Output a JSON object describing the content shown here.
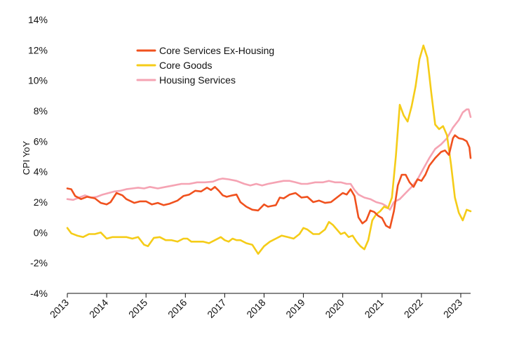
{
  "chart_data": {
    "type": "line",
    "title": "",
    "xlabel": "",
    "ylabel": "CPI YoY",
    "xlim": [
      2013.0,
      2023.25
    ],
    "ylim": [
      -4,
      14
    ],
    "ytick_values": [
      -4,
      -2,
      0,
      2,
      4,
      6,
      8,
      10,
      12,
      14
    ],
    "ytick_labels": [
      "-4%",
      "-2%",
      "0%",
      "2%",
      "4%",
      "6%",
      "8%",
      "10%",
      "12%",
      "14%"
    ],
    "xtick_values": [
      2013,
      2014,
      2015,
      2016,
      2017,
      2018,
      2019,
      2020,
      2021,
      2022,
      2023
    ],
    "xtick_labels": [
      "2013",
      "2014",
      "2015",
      "2016",
      "2017",
      "2018",
      "2019",
      "2020",
      "2021",
      "2022",
      "2023"
    ],
    "grid": false,
    "legend_position": "top-left",
    "series": [
      {
        "name": "Core Services Ex-Housing",
        "color": "#f0511e",
        "points": [
          [
            2013.0,
            2.9
          ],
          [
            2013.1,
            2.85
          ],
          [
            2013.2,
            2.4
          ],
          [
            2013.35,
            2.2
          ],
          [
            2013.5,
            2.35
          ],
          [
            2013.7,
            2.25
          ],
          [
            2013.85,
            1.95
          ],
          [
            2014.0,
            1.85
          ],
          [
            2014.1,
            2.0
          ],
          [
            2014.25,
            2.6
          ],
          [
            2014.4,
            2.45
          ],
          [
            2014.5,
            2.2
          ],
          [
            2014.7,
            1.95
          ],
          [
            2014.85,
            2.05
          ],
          [
            2015.0,
            2.05
          ],
          [
            2015.15,
            1.85
          ],
          [
            2015.3,
            1.95
          ],
          [
            2015.45,
            1.8
          ],
          [
            2015.6,
            1.9
          ],
          [
            2015.8,
            2.1
          ],
          [
            2015.95,
            2.4
          ],
          [
            2016.1,
            2.5
          ],
          [
            2016.25,
            2.75
          ],
          [
            2016.4,
            2.7
          ],
          [
            2016.55,
            2.95
          ],
          [
            2016.65,
            2.8
          ],
          [
            2016.75,
            3.0
          ],
          [
            2016.85,
            2.75
          ],
          [
            2016.95,
            2.45
          ],
          [
            2017.05,
            2.35
          ],
          [
            2017.2,
            2.45
          ],
          [
            2017.3,
            2.5
          ],
          [
            2017.4,
            2.0
          ],
          [
            2017.55,
            1.7
          ],
          [
            2017.7,
            1.5
          ],
          [
            2017.85,
            1.45
          ],
          [
            2018.0,
            1.85
          ],
          [
            2018.1,
            1.7
          ],
          [
            2018.2,
            1.75
          ],
          [
            2018.3,
            1.8
          ],
          [
            2018.4,
            2.3
          ],
          [
            2018.5,
            2.25
          ],
          [
            2018.65,
            2.5
          ],
          [
            2018.8,
            2.6
          ],
          [
            2018.95,
            2.3
          ],
          [
            2019.1,
            2.35
          ],
          [
            2019.25,
            2.0
          ],
          [
            2019.4,
            2.1
          ],
          [
            2019.55,
            1.95
          ],
          [
            2019.7,
            2.0
          ],
          [
            2019.85,
            2.3
          ],
          [
            2020.0,
            2.6
          ],
          [
            2020.1,
            2.5
          ],
          [
            2020.2,
            2.85
          ],
          [
            2020.3,
            2.4
          ],
          [
            2020.4,
            1.0
          ],
          [
            2020.5,
            0.6
          ],
          [
            2020.6,
            0.8
          ],
          [
            2020.7,
            1.45
          ],
          [
            2020.8,
            1.35
          ],
          [
            2020.9,
            1.1
          ],
          [
            2021.0,
            0.95
          ],
          [
            2021.1,
            0.45
          ],
          [
            2021.2,
            0.3
          ],
          [
            2021.3,
            1.4
          ],
          [
            2021.4,
            3.1
          ],
          [
            2021.5,
            3.8
          ],
          [
            2021.6,
            3.8
          ],
          [
            2021.7,
            3.3
          ],
          [
            2021.8,
            3.0
          ],
          [
            2021.9,
            3.5
          ],
          [
            2022.0,
            3.4
          ],
          [
            2022.1,
            3.8
          ],
          [
            2022.2,
            4.4
          ],
          [
            2022.35,
            4.9
          ],
          [
            2022.5,
            5.3
          ],
          [
            2022.6,
            5.4
          ],
          [
            2022.7,
            5.1
          ],
          [
            2022.8,
            6.2
          ],
          [
            2022.85,
            6.4
          ],
          [
            2022.95,
            6.2
          ],
          [
            2023.05,
            6.15
          ],
          [
            2023.15,
            6.0
          ],
          [
            2023.22,
            5.6
          ],
          [
            2023.25,
            4.9
          ]
        ]
      },
      {
        "name": "Core Goods",
        "color": "#f5cc18",
        "points": [
          [
            2013.0,
            0.3
          ],
          [
            2013.1,
            -0.05
          ],
          [
            2013.25,
            -0.2
          ],
          [
            2013.4,
            -0.3
          ],
          [
            2013.55,
            -0.1
          ],
          [
            2013.7,
            -0.1
          ],
          [
            2013.85,
            0.0
          ],
          [
            2014.0,
            -0.4
          ],
          [
            2014.15,
            -0.3
          ],
          [
            2014.35,
            -0.3
          ],
          [
            2014.5,
            -0.3
          ],
          [
            2014.65,
            -0.4
          ],
          [
            2014.8,
            -0.3
          ],
          [
            2014.95,
            -0.8
          ],
          [
            2015.05,
            -0.9
          ],
          [
            2015.2,
            -0.35
          ],
          [
            2015.35,
            -0.3
          ],
          [
            2015.5,
            -0.5
          ],
          [
            2015.65,
            -0.5
          ],
          [
            2015.8,
            -0.6
          ],
          [
            2015.95,
            -0.4
          ],
          [
            2016.05,
            -0.4
          ],
          [
            2016.15,
            -0.6
          ],
          [
            2016.3,
            -0.6
          ],
          [
            2016.45,
            -0.6
          ],
          [
            2016.6,
            -0.7
          ],
          [
            2016.75,
            -0.5
          ],
          [
            2016.9,
            -0.3
          ],
          [
            2017.0,
            -0.5
          ],
          [
            2017.1,
            -0.6
          ],
          [
            2017.2,
            -0.4
          ],
          [
            2017.3,
            -0.5
          ],
          [
            2017.4,
            -0.5
          ],
          [
            2017.55,
            -0.7
          ],
          [
            2017.7,
            -0.8
          ],
          [
            2017.85,
            -1.4
          ],
          [
            2018.0,
            -0.9
          ],
          [
            2018.15,
            -0.6
          ],
          [
            2018.3,
            -0.4
          ],
          [
            2018.45,
            -0.2
          ],
          [
            2018.6,
            -0.3
          ],
          [
            2018.75,
            -0.4
          ],
          [
            2018.9,
            -0.1
          ],
          [
            2019.0,
            0.3
          ],
          [
            2019.1,
            0.2
          ],
          [
            2019.25,
            -0.1
          ],
          [
            2019.4,
            -0.1
          ],
          [
            2019.55,
            0.2
          ],
          [
            2019.65,
            0.7
          ],
          [
            2019.75,
            0.5
          ],
          [
            2019.85,
            0.2
          ],
          [
            2019.95,
            -0.1
          ],
          [
            2020.05,
            0.0
          ],
          [
            2020.15,
            -0.3
          ],
          [
            2020.25,
            -0.2
          ],
          [
            2020.35,
            -0.6
          ],
          [
            2020.45,
            -0.9
          ],
          [
            2020.55,
            -1.1
          ],
          [
            2020.65,
            -0.5
          ],
          [
            2020.75,
            0.8
          ],
          [
            2020.85,
            1.2
          ],
          [
            2020.95,
            1.4
          ],
          [
            2021.05,
            1.7
          ],
          [
            2021.15,
            1.6
          ],
          [
            2021.25,
            2.3
          ],
          [
            2021.35,
            5.0
          ],
          [
            2021.45,
            8.4
          ],
          [
            2021.55,
            7.7
          ],
          [
            2021.65,
            7.3
          ],
          [
            2021.75,
            8.3
          ],
          [
            2021.85,
            9.6
          ],
          [
            2021.95,
            11.4
          ],
          [
            2022.05,
            12.3
          ],
          [
            2022.15,
            11.5
          ],
          [
            2022.25,
            9.2
          ],
          [
            2022.35,
            7.1
          ],
          [
            2022.45,
            6.8
          ],
          [
            2022.55,
            7.0
          ],
          [
            2022.65,
            6.4
          ],
          [
            2022.75,
            4.5
          ],
          [
            2022.85,
            2.3
          ],
          [
            2022.95,
            1.3
          ],
          [
            2023.05,
            0.8
          ],
          [
            2023.15,
            1.5
          ],
          [
            2023.25,
            1.4
          ]
        ]
      },
      {
        "name": "Housing Services",
        "color": "#f5a3b3",
        "points": [
          [
            2013.0,
            2.2
          ],
          [
            2013.15,
            2.15
          ],
          [
            2013.3,
            2.3
          ],
          [
            2013.45,
            2.45
          ],
          [
            2013.6,
            2.3
          ],
          [
            2013.75,
            2.35
          ],
          [
            2013.9,
            2.5
          ],
          [
            2014.05,
            2.6
          ],
          [
            2014.2,
            2.7
          ],
          [
            2014.35,
            2.75
          ],
          [
            2014.5,
            2.85
          ],
          [
            2014.65,
            2.9
          ],
          [
            2014.8,
            2.95
          ],
          [
            2014.95,
            2.9
          ],
          [
            2015.1,
            3.0
          ],
          [
            2015.3,
            2.9
          ],
          [
            2015.5,
            3.0
          ],
          [
            2015.7,
            3.1
          ],
          [
            2015.9,
            3.2
          ],
          [
            2016.1,
            3.2
          ],
          [
            2016.3,
            3.3
          ],
          [
            2016.5,
            3.3
          ],
          [
            2016.7,
            3.35
          ],
          [
            2016.85,
            3.5
          ],
          [
            2016.95,
            3.55
          ],
          [
            2017.1,
            3.5
          ],
          [
            2017.3,
            3.4
          ],
          [
            2017.5,
            3.2
          ],
          [
            2017.65,
            3.1
          ],
          [
            2017.8,
            3.2
          ],
          [
            2017.95,
            3.1
          ],
          [
            2018.1,
            3.2
          ],
          [
            2018.3,
            3.3
          ],
          [
            2018.5,
            3.4
          ],
          [
            2018.65,
            3.4
          ],
          [
            2018.8,
            3.3
          ],
          [
            2018.95,
            3.2
          ],
          [
            2019.1,
            3.2
          ],
          [
            2019.3,
            3.3
          ],
          [
            2019.5,
            3.3
          ],
          [
            2019.65,
            3.4
          ],
          [
            2019.8,
            3.3
          ],
          [
            2019.95,
            3.3
          ],
          [
            2020.1,
            3.2
          ],
          [
            2020.2,
            3.2
          ],
          [
            2020.3,
            2.8
          ],
          [
            2020.4,
            2.5
          ],
          [
            2020.55,
            2.3
          ],
          [
            2020.7,
            2.2
          ],
          [
            2020.85,
            2.0
          ],
          [
            2021.0,
            1.9
          ],
          [
            2021.1,
            1.75
          ],
          [
            2021.2,
            1.5
          ],
          [
            2021.3,
            2.0
          ],
          [
            2021.45,
            2.2
          ],
          [
            2021.6,
            2.6
          ],
          [
            2021.75,
            3.0
          ],
          [
            2021.9,
            3.5
          ],
          [
            2022.05,
            4.2
          ],
          [
            2022.2,
            4.9
          ],
          [
            2022.35,
            5.5
          ],
          [
            2022.5,
            5.8
          ],
          [
            2022.65,
            6.2
          ],
          [
            2022.8,
            6.9
          ],
          [
            2022.95,
            7.4
          ],
          [
            2023.05,
            7.9
          ],
          [
            2023.15,
            8.1
          ],
          [
            2023.2,
            8.1
          ],
          [
            2023.25,
            7.6
          ]
        ]
      }
    ]
  }
}
